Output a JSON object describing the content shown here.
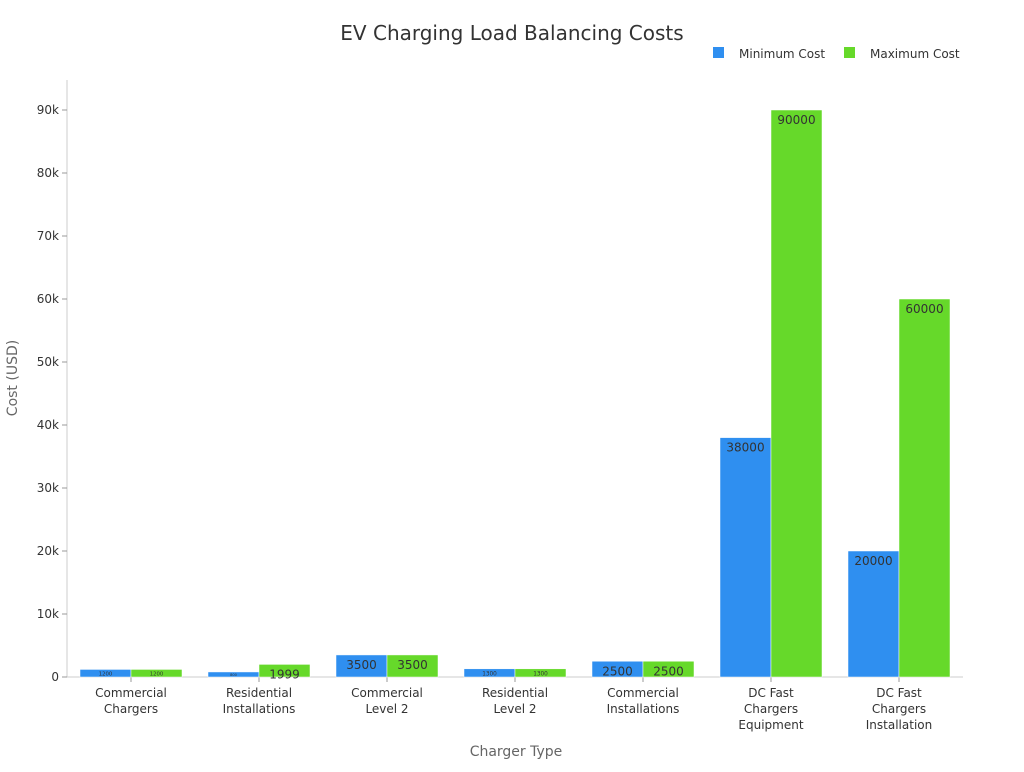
{
  "chart_data": {
    "type": "bar",
    "title": "EV Charging Load Balancing Costs",
    "xlabel": "Charger Type",
    "ylabel": "Cost (USD)",
    "ylim": [
      0,
      95000
    ],
    "yticks": [
      0,
      10000,
      20000,
      30000,
      40000,
      50000,
      60000,
      70000,
      80000,
      90000
    ],
    "ytick_labels": [
      "0",
      "10k",
      "20k",
      "30k",
      "40k",
      "50k",
      "60k",
      "70k",
      "80k",
      "90k"
    ],
    "categories": [
      [
        "Commercial",
        "Chargers"
      ],
      [
        "Residential",
        "Installations"
      ],
      [
        "Commercial",
        "Level 2"
      ],
      [
        "Residential",
        "Level 2"
      ],
      [
        "Commercial",
        "Installations"
      ],
      [
        "DC Fast",
        "Chargers",
        "Equipment"
      ],
      [
        "DC Fast",
        "Chargers",
        "Installation"
      ]
    ],
    "series": [
      {
        "name": "Minimum Cost",
        "color": "#2f8ff0",
        "values": [
          1200,
          800,
          3500,
          1300,
          2500,
          38000,
          20000
        ]
      },
      {
        "name": "Maximum Cost",
        "color": "#66d92a",
        "values": [
          1200,
          1999,
          3500,
          1300,
          2500,
          90000,
          60000
        ]
      }
    ],
    "legend": "top-right",
    "grid": false
  }
}
